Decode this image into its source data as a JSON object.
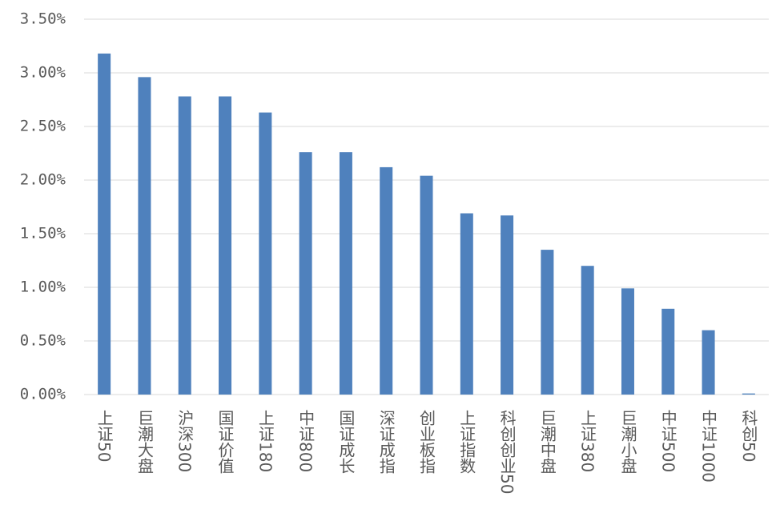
{
  "chart_data": {
    "type": "bar",
    "categories": [
      "上证50",
      "巨潮大盘",
      "沪深300",
      "国证价值",
      "上证180",
      "中证800",
      "国证成长",
      "深证成指",
      "创业板指",
      "上证指数",
      "科创创业50",
      "巨潮中盘",
      "上证380",
      "巨潮小盘",
      "中证500",
      "中证1000",
      "科创50"
    ],
    "values": [
      3.18,
      2.96,
      2.78,
      2.78,
      2.63,
      2.26,
      2.26,
      2.12,
      2.04,
      1.69,
      1.67,
      1.35,
      1.2,
      0.99,
      0.8,
      0.6,
      0.01
    ],
    "color": "#4f81bd",
    "ylim": [
      0,
      3.5
    ],
    "yticks": [
      {
        "value": 0,
        "label": "0.00%"
      },
      {
        "value": 0.5,
        "label": "0.50%"
      },
      {
        "value": 1,
        "label": "1.00%"
      },
      {
        "value": 1.5,
        "label": "1.50%"
      },
      {
        "value": 2,
        "label": "2.00%"
      },
      {
        "value": 2.5,
        "label": "2.50%"
      },
      {
        "value": 3,
        "label": "3.00%"
      },
      {
        "value": 3.5,
        "label": "3.50%"
      }
    ],
    "grid": true
  }
}
